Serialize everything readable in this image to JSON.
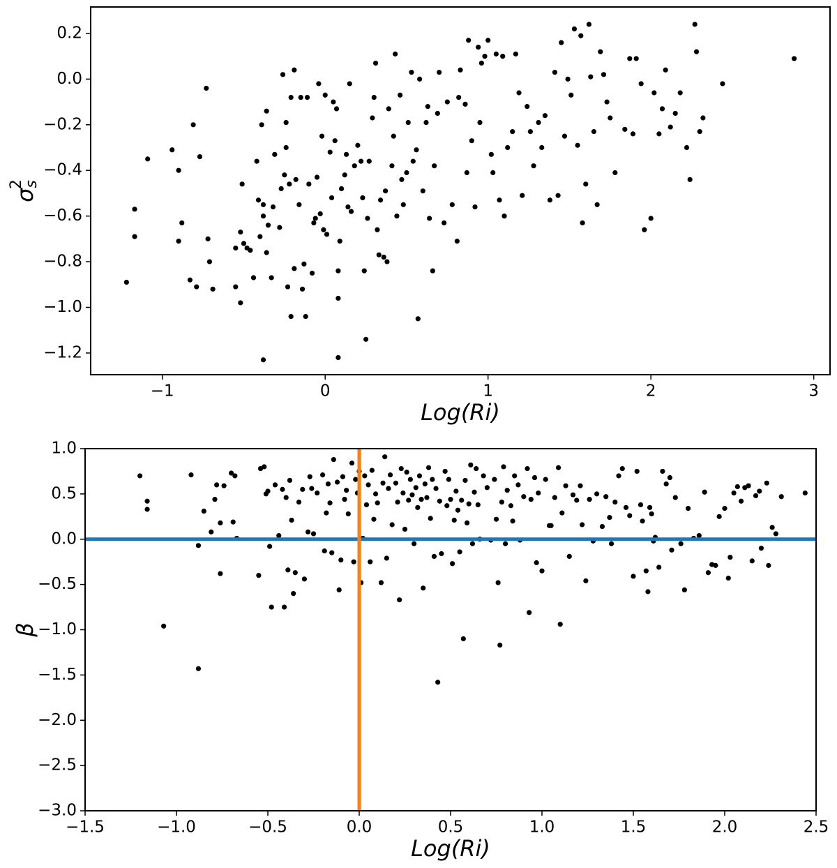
{
  "chart_data": [
    {
      "type": "scatter",
      "xlabel": "Log(Ri)",
      "ylabel": {
        "symbol": "σ",
        "subscript": "s",
        "superscript": "2"
      },
      "xlim": [
        -1.44,
        3.1
      ],
      "ylim": [
        -1.295,
        0.316
      ],
      "xticks": [
        {
          "value": -1,
          "label": "−1"
        },
        0,
        1,
        2,
        3
      ],
      "yticks": [
        0.2,
        {
          "value": 0,
          "label": "0.0"
        },
        {
          "value": -0.2,
          "label": "−0.2"
        },
        {
          "value": -0.4,
          "label": "−0.4"
        },
        {
          "value": -0.6,
          "label": "−0.6"
        },
        {
          "value": -0.8,
          "label": "−0.8"
        },
        {
          "value": -1,
          "label": "−1.0"
        },
        {
          "value": -1.2,
          "label": "−1.2"
        }
      ],
      "color": "#000000",
      "x": [
        -1.22,
        -1.17,
        -1.17,
        -1.09,
        -0.94,
        -0.9,
        -0.9,
        -0.88,
        -0.83,
        -0.81,
        -0.79,
        -0.77,
        -0.73,
        -0.72,
        -0.71,
        -0.69,
        -0.55,
        -0.55,
        -0.52,
        -0.52,
        -0.51,
        -0.5,
        -0.48,
        -0.46,
        -0.44,
        -0.42,
        -0.41,
        -0.4,
        -0.39,
        -0.38,
        -0.38,
        -0.38,
        -0.36,
        -0.36,
        -0.35,
        -0.33,
        -0.32,
        -0.31,
        -0.28,
        -0.27,
        -0.26,
        -0.25,
        -0.24,
        -0.24,
        -0.23,
        -0.22,
        -0.21,
        -0.21,
        -0.19,
        -0.19,
        -0.18,
        -0.16,
        -0.15,
        -0.14,
        -0.13,
        -0.12,
        -0.11,
        -0.1,
        -0.08,
        -0.07,
        -0.06,
        -0.05,
        -0.04,
        -0.03,
        -0.02,
        -0.01,
        0,
        0.01,
        0.03,
        0.04,
        0.05,
        0.06,
        0.07,
        0.08,
        0.08,
        0.08,
        0.09,
        0.1,
        0.12,
        0.13,
        0.14,
        0.15,
        0.16,
        0.18,
        0.2,
        0.22,
        0.23,
        0.24,
        0.25,
        0.26,
        0.27,
        0.29,
        0.3,
        0.31,
        0.32,
        0.33,
        0.34,
        0.36,
        0.37,
        0.38,
        0.39,
        0.41,
        0.42,
        0.43,
        0.44,
        0.46,
        0.47,
        0.48,
        0.5,
        0.51,
        0.53,
        0.54,
        0.56,
        0.57,
        0.58,
        0.6,
        0.62,
        0.63,
        0.64,
        0.66,
        0.67,
        0.69,
        0.7,
        0.73,
        0.75,
        0.78,
        0.81,
        0.82,
        0.83,
        0.86,
        0.87,
        0.88,
        0.9,
        0.92,
        0.94,
        0.95,
        0.96,
        0.98,
        1,
        1.02,
        1.03,
        1.05,
        1.07,
        1.09,
        1.1,
        1.12,
        1.15,
        1.17,
        1.19,
        1.21,
        1.24,
        1.26,
        1.28,
        1.31,
        1.33,
        1.35,
        1.38,
        1.41,
        1.43,
        1.45,
        1.47,
        1.49,
        1.51,
        1.53,
        1.55,
        1.57,
        1.58,
        1.6,
        1.62,
        1.63,
        1.65,
        1.67,
        1.69,
        1.71,
        1.73,
        1.75,
        1.78,
        1.84,
        1.87,
        1.89,
        1.91,
        1.94,
        1.96,
        2,
        2.02,
        2.05,
        2.07,
        2.09,
        2.12,
        2.15,
        2.18,
        2.22,
        2.24,
        2.27,
        2.28,
        2.3,
        2.32,
        2.44,
        2.88
      ],
      "values": [
        -0.89,
        -0.57,
        -0.69,
        -0.35,
        -0.31,
        -0.4,
        -0.71,
        -0.63,
        -0.88,
        -0.2,
        -0.91,
        -0.34,
        -0.04,
        -0.7,
        -0.8,
        -0.92,
        -0.74,
        -0.91,
        -0.67,
        -0.98,
        -0.46,
        -0.72,
        -0.74,
        -0.75,
        -0.87,
        -0.36,
        -0.53,
        -0.69,
        -0.2,
        -0.55,
        -0.6,
        -1.23,
        -0.14,
        -0.76,
        -0.64,
        -0.87,
        -0.56,
        -0.33,
        -0.65,
        -0.48,
        0.02,
        -0.42,
        -0.3,
        -0.19,
        -0.91,
        -0.46,
        -0.08,
        -1.04,
        0.04,
        -0.83,
        -0.44,
        -0.55,
        -0.08,
        -0.92,
        -0.81,
        -1.04,
        -0.08,
        -0.46,
        -0.85,
        -0.63,
        -0.61,
        -0.43,
        -0.02,
        -0.59,
        -0.25,
        -0.66,
        -0.07,
        -0.68,
        -0.32,
        -0.52,
        -0.1,
        -0.27,
        -0.13,
        -0.84,
        -0.96,
        -1.22,
        -0.71,
        -0.48,
        -0.42,
        -0.33,
        -0.56,
        -0.02,
        -0.58,
        -0.38,
        -0.29,
        -0.36,
        -0.52,
        -0.84,
        -1.14,
        -0.61,
        -0.36,
        -0.17,
        -0.08,
        0.07,
        -0.66,
        -0.77,
        -0.53,
        -0.78,
        -0.49,
        -0.8,
        -0.13,
        -0.38,
        -0.25,
        0.11,
        -0.6,
        -0.07,
        -0.44,
        -0.55,
        -0.41,
        -0.19,
        0.03,
        -0.36,
        -0.31,
        -1.05,
        0,
        -0.49,
        -0.19,
        -0.12,
        -0.61,
        -0.84,
        -0.38,
        -0.15,
        0.03,
        -0.63,
        -0.1,
        -0.55,
        -0.71,
        -0.08,
        0.04,
        -0.11,
        -0.41,
        0.17,
        -0.27,
        -0.56,
        0.14,
        -0.19,
        0.07,
        0.1,
        0.17,
        -0.33,
        -0.41,
        0.11,
        -0.53,
        0.1,
        -0.6,
        -0.3,
        -0.23,
        0.11,
        -0.06,
        -0.51,
        -0.12,
        -0.23,
        -0.38,
        -0.19,
        -0.3,
        -0.16,
        -0.53,
        0.03,
        -0.51,
        0.16,
        -0.25,
        0,
        -0.07,
        0.22,
        -0.29,
        0.19,
        -0.63,
        -0.46,
        0.24,
        0.01,
        -0.23,
        -0.55,
        0.12,
        0.02,
        -0.1,
        -0.17,
        -0.41,
        -0.22,
        0.09,
        -0.24,
        0.09,
        -0.02,
        -0.66,
        -0.61,
        -0.06,
        -0.24,
        -0.13,
        0.04,
        -0.21,
        -0.15,
        -0.06,
        -0.3,
        -0.44,
        0.24,
        0.12,
        -0.23,
        -0.17,
        -0.02,
        0.09
      ]
    },
    {
      "type": "scatter",
      "xlabel": "Log(Ri)",
      "ylabel": {
        "symbol": "β"
      },
      "xlim": [
        -1.5,
        2.5
      ],
      "ylim": [
        -3,
        1
      ],
      "xticks": [
        {
          "value": -1.5,
          "label": "−1.5"
        },
        {
          "value": -1,
          "label": "−1.0"
        },
        {
          "value": -0.5,
          "label": "−0.5"
        },
        {
          "value": 0,
          "label": "0.0"
        },
        0.5,
        {
          "value": 1,
          "label": "1.0"
        },
        1.5,
        {
          "value": 2,
          "label": "2.0"
        },
        2.5
      ],
      "yticks": [
        {
          "value": 1,
          "label": "1.0"
        },
        0.5,
        {
          "value": 0,
          "label": "0.0"
        },
        {
          "value": -0.5,
          "label": "−0.5"
        },
        {
          "value": -1,
          "label": "−1.0"
        },
        {
          "value": -1.5,
          "label": "−1.5"
        },
        {
          "value": -2,
          "label": "−2.0"
        },
        {
          "value": -2.5,
          "label": "−2.5"
        },
        {
          "value": -3,
          "label": "−3.0"
        }
      ],
      "color": "#000000",
      "reference_lines": [
        {
          "axis": "y",
          "value": 0,
          "color": "#1f77b4"
        },
        {
          "axis": "x",
          "value": 0,
          "color": "#ff7f0e"
        }
      ],
      "x": [
        -1.2,
        -1.16,
        -1.16,
        -1.07,
        -0.92,
        -0.88,
        -0.88,
        -0.85,
        -0.81,
        -0.79,
        -0.78,
        -0.76,
        -0.76,
        -0.74,
        -0.7,
        -0.69,
        -0.68,
        -0.67,
        -0.55,
        -0.54,
        -0.52,
        -0.51,
        -0.5,
        -0.49,
        -0.48,
        -0.46,
        -0.44,
        -0.42,
        -0.41,
        -0.4,
        -0.39,
        -0.38,
        -0.37,
        -0.36,
        -0.35,
        -0.33,
        -0.31,
        -0.3,
        -0.28,
        -0.27,
        -0.26,
        -0.25,
        -0.23,
        -0.2,
        -0.19,
        -0.18,
        -0.17,
        -0.16,
        -0.15,
        -0.14,
        -0.12,
        -0.11,
        -0.1,
        -0.09,
        -0.08,
        -0.07,
        -0.06,
        -0.04,
        -0.03,
        -0.02,
        -0.01,
        0,
        0.01,
        0.02,
        0.03,
        0.04,
        0.05,
        0.06,
        0.07,
        0.08,
        0.09,
        0.1,
        0.12,
        0.13,
        0.14,
        0.15,
        0.16,
        0.17,
        0.18,
        0.2,
        0.21,
        0.22,
        0.23,
        0.24,
        0.25,
        0.26,
        0.27,
        0.28,
        0.29,
        0.3,
        0.31,
        0.32,
        0.33,
        0.34,
        0.35,
        0.36,
        0.37,
        0.38,
        0.39,
        0.4,
        0.41,
        0.42,
        0.43,
        0.44,
        0.45,
        0.47,
        0.48,
        0.49,
        0.5,
        0.51,
        0.52,
        0.53,
        0.54,
        0.55,
        0.56,
        0.57,
        0.58,
        0.59,
        0.6,
        0.61,
        0.62,
        0.63,
        0.64,
        0.65,
        0.66,
        0.68,
        0.7,
        0.72,
        0.74,
        0.75,
        0.76,
        0.77,
        0.78,
        0.79,
        0.8,
        0.81,
        0.83,
        0.84,
        0.85,
        0.87,
        0.88,
        0.9,
        0.92,
        0.93,
        0.94,
        0.96,
        0.97,
        0.98,
        1,
        1.02,
        1.04,
        1.05,
        1.07,
        1.09,
        1.1,
        1.11,
        1.13,
        1.15,
        1.17,
        1.19,
        1.21,
        1.22,
        1.24,
        1.26,
        1.28,
        1.3,
        1.33,
        1.35,
        1.37,
        1.38,
        1.4,
        1.42,
        1.44,
        1.46,
        1.48,
        1.5,
        1.52,
        1.54,
        1.55,
        1.57,
        1.58,
        1.59,
        1.6,
        1.61,
        1.62,
        1.64,
        1.66,
        1.68,
        1.7,
        1.71,
        1.73,
        1.76,
        1.78,
        1.8,
        1.83,
        1.86,
        1.89,
        1.91,
        1.93,
        1.95,
        1.97,
        2,
        2.02,
        2.03,
        2.05,
        2.07,
        2.09,
        2.11,
        2.13,
        2.15,
        2.17,
        2.19,
        2.2,
        2.23,
        2.24,
        2.26,
        2.28,
        2.31,
        2.44
      ],
      "values": [
        0.7,
        0.42,
        0.33,
        -0.96,
        0.71,
        -0.07,
        -1.43,
        0.31,
        0.08,
        0.44,
        0.6,
        -0.38,
        0.18,
        0.59,
        0.73,
        0.19,
        0.7,
        0.01,
        -0.4,
        0.78,
        0.8,
        0.5,
        0.53,
        -0.08,
        -0.75,
        0.6,
        0.04,
        0.55,
        -0.75,
        0.46,
        -0.34,
        0.65,
        0.21,
        -0.6,
        -0.37,
        0.41,
        0.55,
        -0.44,
        0.08,
        0.69,
        0.56,
        0.06,
        0.51,
        0.71,
        -0.13,
        0.29,
        0.61,
        0.4,
        -0.15,
        0.88,
        0.63,
        -0.56,
        -0.23,
        0.69,
        0.44,
        0.54,
        0.28,
        0.84,
        -0.25,
        0.66,
        0.51,
        0.75,
        -0.48,
        0.01,
        0.7,
        0.38,
        0.6,
        -0.25,
        0.76,
        0.22,
        0.5,
        0.4,
        -0.48,
        0.62,
        0.91,
        -0.21,
        0.56,
        0.71,
        0.16,
        0.62,
        0.41,
        -0.67,
        0.78,
        0.51,
        0.11,
        0.74,
        0.43,
        0.66,
        0.49,
        -0.05,
        0.57,
        0.35,
        0.7,
        0.44,
        -0.54,
        0.61,
        0.46,
        0.79,
        0.23,
        0.66,
        -0.19,
        0.56,
        -1.58,
        0.42,
        -0.16,
        0.75,
        0.37,
        0.66,
        0.44,
        -0.27,
        0.21,
        0.53,
        0.32,
        -0.14,
        0.43,
        -1.1,
        0.65,
        0.18,
        0.39,
        0.82,
        -0.05,
        0.52,
        0.78,
        0.38,
        0,
        0.7,
        0.57,
        -0.01,
        0.66,
        0.22,
        -0.48,
        -1.17,
        0.41,
        0.8,
        -0.05,
        0.54,
        0.37,
        0.2,
        0.7,
        0.6,
        -0.01,
        0.47,
        0.78,
        -0.81,
        0.44,
        0.68,
        -0.26,
        0.51,
        -0.35,
        0.66,
        0.15,
        0.15,
        0.46,
        0.79,
        -0.94,
        0.29,
        0.59,
        -0.19,
        0.49,
        0.43,
        0.59,
        0.16,
        -0.46,
        0.44,
        -0.02,
        0.5,
        0.14,
        0.47,
        0.24,
        -0.05,
        0.41,
        0.7,
        0.78,
        0.35,
        0.26,
        -0.41,
        0.75,
        0.38,
        0.2,
        -0.35,
        -0.58,
        0.35,
        0.28,
        -0.02,
        0.02,
        -0.31,
        0.75,
        0.61,
        0.68,
        -0.12,
        0.46,
        -0.05,
        -0.56,
        0.34,
        0.01,
        0.04,
        0.52,
        -0.37,
        -0.28,
        -0.29,
        0.25,
        0.34,
        -0.43,
        -0.2,
        0.51,
        0.58,
        0.42,
        0.57,
        0.59,
        -0.24,
        0.48,
        0.53,
        -0.1,
        0.62,
        -0.29,
        0.13,
        0.06,
        0.47,
        0.51
      ]
    }
  ]
}
